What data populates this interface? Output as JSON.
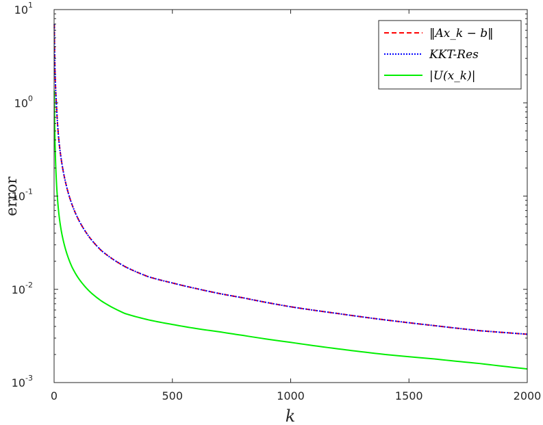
{
  "chart_data": {
    "type": "line",
    "xlabel": "k",
    "ylabel": "error",
    "xlim": [
      0,
      2000
    ],
    "ylim": [
      0.001,
      10
    ],
    "yscale": "log",
    "grid": false,
    "legend_position": "top-right",
    "x_ticks": [
      "0",
      "500",
      "1000",
      "1500",
      "2000"
    ],
    "y_ticks": [
      {
        "base": "10",
        "exp": "1"
      },
      {
        "base": "10",
        "exp": "0"
      },
      {
        "base": "10",
        "exp": "-1"
      },
      {
        "base": "10",
        "exp": "-2"
      },
      {
        "base": "10",
        "exp": "-3"
      }
    ],
    "series": [
      {
        "name": "‖Ax_k − b‖",
        "color": "#ff0000",
        "style": "dashed",
        "x": [
          1,
          5,
          10,
          20,
          30,
          50,
          75,
          100,
          150,
          200,
          300,
          400,
          500,
          600,
          700,
          800,
          1000,
          1200,
          1400,
          1600,
          1800,
          2000
        ],
        "y": [
          7.0,
          1.8,
          0.95,
          0.4,
          0.25,
          0.135,
          0.082,
          0.058,
          0.036,
          0.026,
          0.0175,
          0.0136,
          0.0117,
          0.0102,
          0.009,
          0.0081,
          0.0065,
          0.0055,
          0.0047,
          0.0041,
          0.0036,
          0.0033
        ]
      },
      {
        "name": "KKT-Res",
        "color": "#0000ff",
        "style": "dotted",
        "x": [
          1,
          5,
          10,
          20,
          30,
          50,
          75,
          100,
          150,
          200,
          300,
          400,
          500,
          600,
          700,
          800,
          1000,
          1200,
          1400,
          1600,
          1800,
          2000
        ],
        "y": [
          7.0,
          1.8,
          0.95,
          0.4,
          0.25,
          0.135,
          0.082,
          0.058,
          0.036,
          0.026,
          0.0175,
          0.0136,
          0.0117,
          0.0102,
          0.009,
          0.0081,
          0.0065,
          0.0055,
          0.0047,
          0.0041,
          0.0036,
          0.0033
        ]
      },
      {
        "name": "|U(x_k)|",
        "color": "#00ee00",
        "style": "solid",
        "x": [
          1,
          5,
          10,
          20,
          30,
          50,
          75,
          100,
          150,
          200,
          300,
          400,
          500,
          600,
          700,
          800,
          1000,
          1200,
          1400,
          1600,
          1800,
          2000
        ],
        "y": [
          1.35,
          0.3,
          0.14,
          0.065,
          0.043,
          0.026,
          0.0175,
          0.0135,
          0.0095,
          0.0075,
          0.0055,
          0.0047,
          0.0042,
          0.0038,
          0.0035,
          0.0032,
          0.0027,
          0.0023,
          0.002,
          0.0018,
          0.0016,
          0.0014
        ]
      }
    ]
  }
}
